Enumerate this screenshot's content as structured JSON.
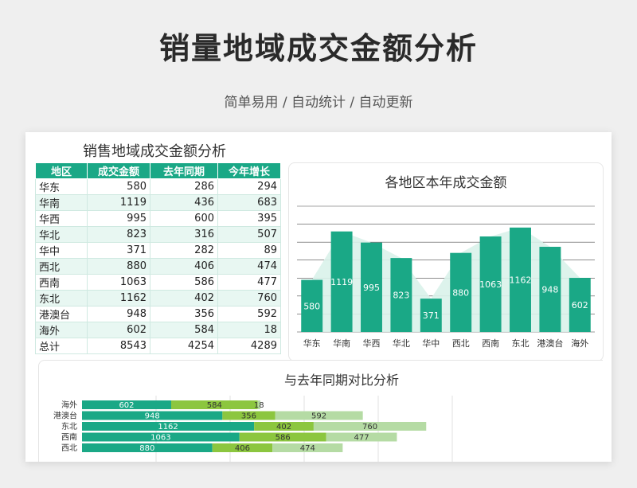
{
  "header": {
    "title": "销量地域成交金额分析",
    "subtitle": "简单易用 / 自动统计 / 自动更新"
  },
  "table": {
    "title": "销售地域成交金额分析",
    "columns": [
      "地区",
      "成交金额",
      "去年同期",
      "今年增长"
    ],
    "rows": [
      [
        "华东",
        "580",
        "286",
        "294"
      ],
      [
        "华南",
        "1119",
        "436",
        "683"
      ],
      [
        "华西",
        "995",
        "600",
        "395"
      ],
      [
        "华北",
        "823",
        "316",
        "507"
      ],
      [
        "华中",
        "371",
        "282",
        "89"
      ],
      [
        "西北",
        "880",
        "406",
        "474"
      ],
      [
        "西南",
        "1063",
        "586",
        "477"
      ],
      [
        "东北",
        "1162",
        "402",
        "760"
      ],
      [
        "港澳台",
        "948",
        "356",
        "592"
      ],
      [
        "海外",
        "602",
        "584",
        "18"
      ],
      [
        "总计",
        "8543",
        "4254",
        "4289"
      ]
    ]
  },
  "colors": {
    "primary": "#1aa886",
    "light_green": "#8cc63f",
    "pale_green": "#b5dba4",
    "row_alt": "#e8f7f2"
  },
  "chart_data": [
    {
      "type": "bar",
      "title": "各地区本年成交金额",
      "categories": [
        "华东",
        "华南",
        "华西",
        "华北",
        "华中",
        "西北",
        "西南",
        "东北",
        "港澳台",
        "海外"
      ],
      "values": [
        580,
        1119,
        995,
        823,
        371,
        880,
        1063,
        1162,
        948,
        602
      ],
      "ylim": [
        0,
        1400
      ],
      "grid": true
    },
    {
      "type": "bar",
      "orientation": "horizontal-stacked",
      "title": "与去年同期对比分析",
      "categories": [
        "海外",
        "港澳台",
        "东北",
        "西南",
        "西北"
      ],
      "series": [
        {
          "values": [
            602,
            948,
            1162,
            1063,
            880
          ]
        },
        {
          "values": [
            584,
            356,
            402,
            586,
            406
          ]
        },
        {
          "values": [
            18,
            592,
            760,
            477,
            474
          ]
        }
      ],
      "grid": true
    }
  ]
}
